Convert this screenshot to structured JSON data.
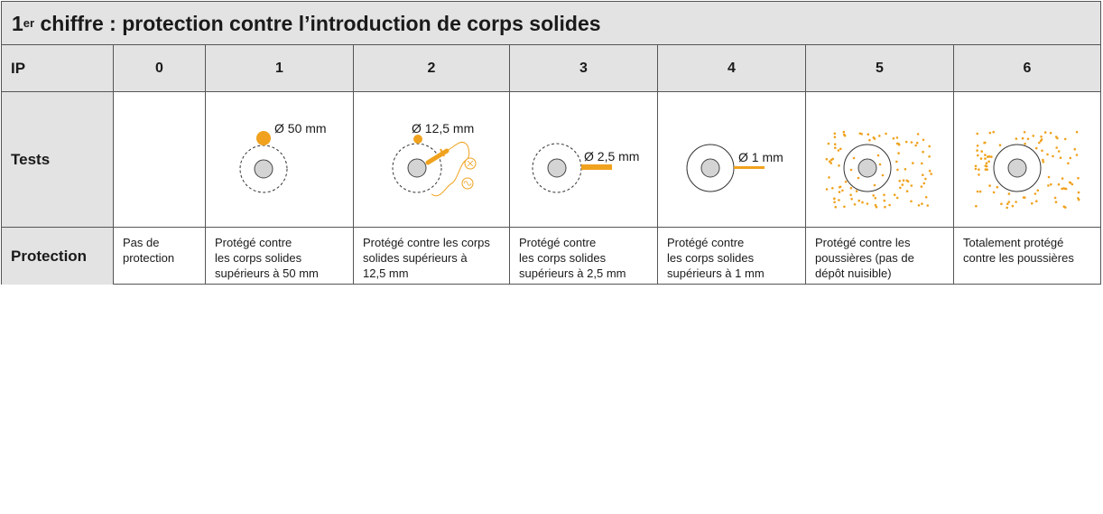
{
  "title": {
    "main": "1",
    "sup": "er",
    "rest": " chiffre : protection contre l’introduction de corps solides"
  },
  "header": {
    "ip_label": "IP",
    "levels": [
      "0",
      "1",
      "2",
      "3",
      "4",
      "5",
      "6"
    ]
  },
  "rows": {
    "tests_label": "Tests",
    "protection_label": "Protection"
  },
  "tests": {
    "level1": "Ø 50 mm",
    "level2": "Ø 12,5 mm",
    "level3": "Ø 2,5 mm",
    "level4": "Ø 1 mm"
  },
  "protection": [
    "Pas de\nprotection",
    "Protégé contre\nles corps solides\nsupérieurs à 50 mm",
    "Protégé contre les corps\nsolides supérieurs à\n12,5 mm",
    "Protégé contre\nles corps solides\nsupérieurs à 2,5 mm",
    "Protégé contre\nles corps solides\nsupérieurs à 1 mm",
    "Protégé contre les\npoussières (pas de\ndépôt nuisible)",
    "Totalement protégé\ncontre les poussières"
  ],
  "colors": {
    "accent": "#f0a21e",
    "header_bg": "#e3e3e3",
    "border": "#555555",
    "sphere": "#d4d4d4"
  }
}
